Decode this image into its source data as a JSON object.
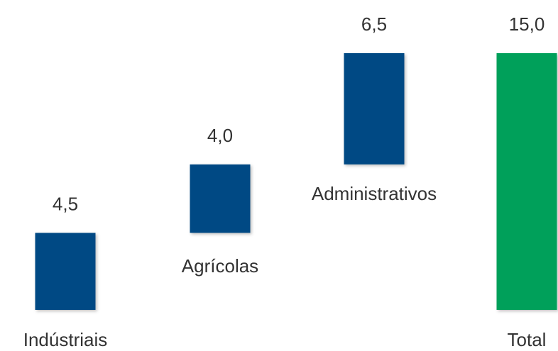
{
  "chart_data": {
    "type": "bar",
    "subtype": "waterfall",
    "categories": [
      "Indústriais",
      "Agrícolas",
      "Administrativos",
      "Total"
    ],
    "values": [
      4.5,
      4.0,
      6.5,
      15.0
    ],
    "value_labels": [
      "4,5",
      "4,0",
      "6,5",
      "15,0"
    ],
    "is_total": [
      false,
      false,
      false,
      true
    ],
    "colors": {
      "step": "#004A84",
      "total": "#00A05A"
    },
    "title": "",
    "xlabel": "",
    "ylabel": "",
    "ylim": [
      0,
      15
    ],
    "grid": false,
    "legend": "none"
  }
}
